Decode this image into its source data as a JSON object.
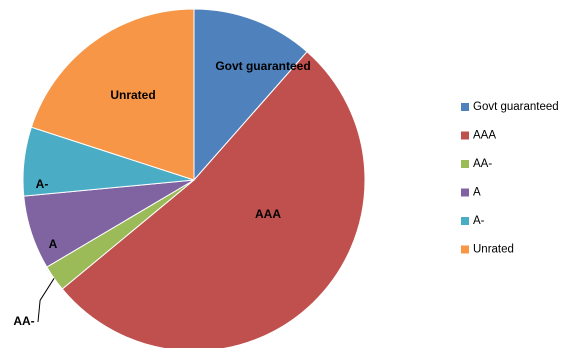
{
  "chart_data": {
    "type": "pie",
    "title": "",
    "legend_position": "right",
    "slices": [
      {
        "label": "Govt guaranteed",
        "value": 11.5,
        "color": "#4F81BD"
      },
      {
        "label": "AAA",
        "value": 52.5,
        "color": "#C0504D"
      },
      {
        "label": "AA-",
        "value": 2.5,
        "color": "#9BBB59"
      },
      {
        "label": "A",
        "value": 7.0,
        "color": "#8064A2"
      },
      {
        "label": "A-",
        "value": 6.5,
        "color": "#4BACC6"
      },
      {
        "label": "Unrated",
        "value": 20.0,
        "color": "#F79646"
      }
    ]
  }
}
